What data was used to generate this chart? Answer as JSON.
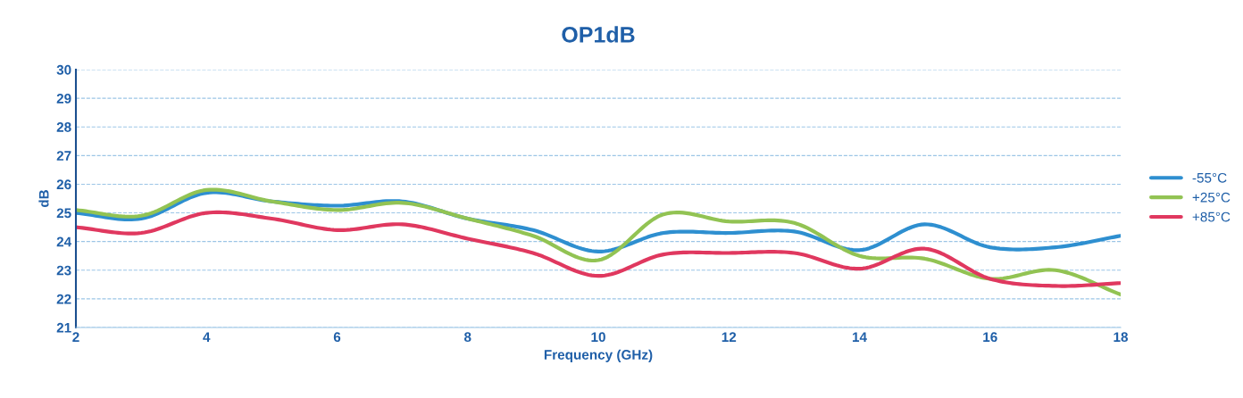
{
  "chart_data": {
    "type": "line",
    "title": "OP1dB",
    "xlabel": "Frequency (GHz)",
    "ylabel": "dB",
    "x": [
      2,
      3,
      4,
      5,
      6,
      7,
      8,
      9,
      10,
      11,
      12,
      13,
      14,
      15,
      16,
      17,
      18
    ],
    "series": [
      {
        "name": "-55°C",
        "color": "#2e8fd0",
        "values": [
          25.0,
          24.8,
          25.7,
          25.4,
          25.25,
          25.4,
          24.8,
          24.4,
          23.65,
          24.3,
          24.3,
          24.35,
          23.7,
          24.6,
          23.8,
          23.8,
          24.2
        ]
      },
      {
        "name": "+25°C",
        "color": "#92c353",
        "values": [
          25.1,
          24.9,
          25.8,
          25.4,
          25.1,
          25.35,
          24.8,
          24.2,
          23.35,
          24.95,
          24.7,
          24.65,
          23.5,
          23.4,
          22.7,
          23.0,
          22.15
        ]
      },
      {
        "name": "+85°C",
        "color": "#e0385f",
        "values": [
          24.5,
          24.3,
          25.0,
          24.8,
          24.4,
          24.6,
          24.1,
          23.6,
          22.8,
          23.55,
          23.6,
          23.6,
          23.05,
          23.75,
          22.7,
          22.45,
          22.55
        ]
      }
    ],
    "xlim": [
      2,
      18
    ],
    "xticks": [
      2,
      4,
      6,
      8,
      10,
      12,
      14,
      16,
      18
    ],
    "ylim": [
      21,
      30
    ],
    "yticks": [
      21,
      22,
      23,
      24,
      25,
      26,
      27,
      28,
      29,
      30
    ],
    "grid": "y",
    "legend": "right",
    "marker": "none",
    "line_style": "solid"
  }
}
